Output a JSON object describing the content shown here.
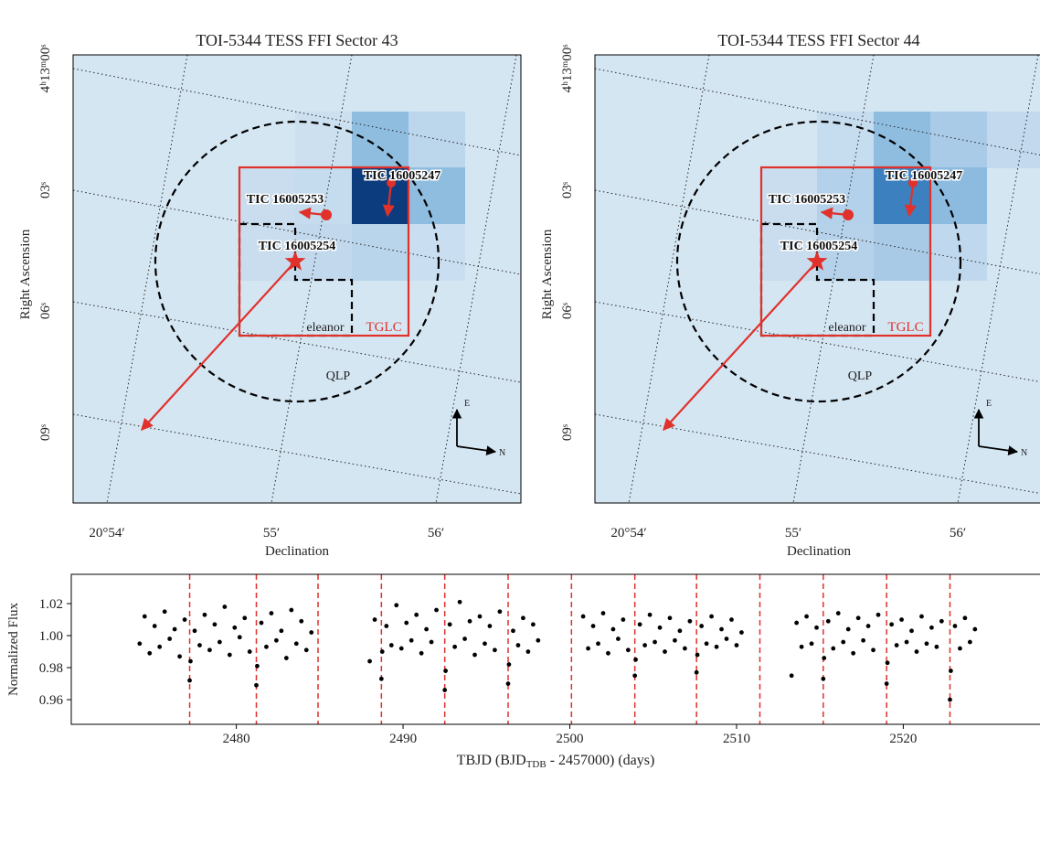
{
  "panels": [
    {
      "title": "TOI-5344 TESS FFI Sector 43",
      "xticks": [
        "20°54′",
        "55′",
        "56′"
      ],
      "yticks": [
        "4ʰ13ᵐ00ˢ",
        "03ˢ",
        "06ˢ",
        "09ˢ"
      ],
      "xlabel": "Declination",
      "ylabel": "Right Ascension",
      "labels": {
        "tic47": "TIC 16005247",
        "tic53": "TIC 16005253",
        "tic54": "TIC 16005254",
        "eleanor": "eleanor",
        "tglc": "TGLC",
        "qlp": "QLP",
        "east": "E",
        "north": "N"
      }
    },
    {
      "title": "TOI-5344 TESS FFI Sector 44",
      "xticks": [
        "20°54′",
        "55′",
        "56′"
      ],
      "yticks": [
        "4ʰ13ᵐ00ˢ",
        "03ˢ",
        "06ˢ",
        "09ˢ"
      ],
      "xlabel": "Declination",
      "ylabel": "Right Ascension",
      "labels": {
        "tic47": "TIC 16005247",
        "tic53": "TIC 16005253",
        "tic54": "TIC 16005254",
        "eleanor": "eleanor",
        "tglc": "TGLC",
        "qlp": "QLP",
        "east": "E",
        "north": "N"
      }
    }
  ],
  "chart_data": {
    "type": "scatter",
    "color": "#000000",
    "transit_color": "#e0312b",
    "ylabel": "Normalized Flux",
    "xlabel": [
      "TBJD (BJD",
      "TDB",
      " - 2457000) (days)"
    ],
    "xlim": [
      2470.1,
      2528.2
    ],
    "ylim": [
      0.9446,
      1.0383
    ],
    "xticks": [
      2480,
      2490,
      2500,
      2510,
      2520
    ],
    "yticks": [
      0.96,
      0.98,
      {
        "value": 1,
        "label": "1.00"
      },
      1.02
    ],
    "transits": [
      2477.2,
      2481.2,
      2484.9,
      2488.7,
      2492.5,
      2496.3,
      2500.1,
      2503.9,
      2507.6,
      2511.4,
      2515.2,
      2519.0,
      2522.8
    ],
    "x": [
      2474.2,
      2474.5,
      2474.8,
      2475.1,
      2475.4,
      2475.7,
      2476.0,
      2476.3,
      2476.6,
      2476.9,
      2477.2,
      2477.25,
      2477.5,
      2477.8,
      2478.1,
      2478.4,
      2478.7,
      2479.0,
      2479.3,
      2479.6,
      2479.9,
      2480.2,
      2480.5,
      2480.8,
      2481.2,
      2481.25,
      2481.5,
      2481.8,
      2482.1,
      2482.4,
      2482.7,
      2483.0,
      2483.3,
      2483.6,
      2483.9,
      2484.2,
      2484.5,
      2488.0,
      2488.3,
      2488.7,
      2488.75,
      2489.0,
      2489.3,
      2489.6,
      2489.9,
      2490.2,
      2490.5,
      2490.8,
      2491.1,
      2491.4,
      2491.7,
      2492.0,
      2492.5,
      2492.55,
      2492.8,
      2493.1,
      2493.4,
      2493.7,
      2494.0,
      2494.3,
      2494.6,
      2494.9,
      2495.2,
      2495.5,
      2495.8,
      2496.3,
      2496.35,
      2496.6,
      2496.9,
      2497.2,
      2497.5,
      2497.8,
      2498.1,
      2500.8,
      2501.1,
      2501.4,
      2501.7,
      2502.0,
      2502.3,
      2502.6,
      2502.9,
      2503.2,
      2503.5,
      2503.9,
      2503.95,
      2504.2,
      2504.5,
      2504.8,
      2505.1,
      2505.4,
      2505.7,
      2506.0,
      2506.3,
      2506.6,
      2506.9,
      2507.2,
      2507.6,
      2507.65,
      2507.9,
      2508.2,
      2508.5,
      2508.8,
      2509.1,
      2509.4,
      2509.7,
      2510.0,
      2510.3,
      2513.3,
      2513.6,
      2513.9,
      2514.2,
      2514.5,
      2514.8,
      2515.2,
      2515.25,
      2515.5,
      2515.8,
      2516.1,
      2516.4,
      2516.7,
      2517.0,
      2517.3,
      2517.6,
      2517.9,
      2518.2,
      2518.5,
      2519.0,
      2519.05,
      2519.3,
      2519.6,
      2519.9,
      2520.2,
      2520.5,
      2520.8,
      2521.1,
      2521.4,
      2521.7,
      2522.0,
      2522.3,
      2522.8,
      2522.85,
      2523.1,
      2523.4,
      2523.7,
      2524.0,
      2524.3
    ],
    "values": [
      0.995,
      1.012,
      0.989,
      1.006,
      0.993,
      1.015,
      0.998,
      1.004,
      0.987,
      1.01,
      0.972,
      0.984,
      1.003,
      0.994,
      1.013,
      0.991,
      1.007,
      0.996,
      1.018,
      0.988,
      1.005,
      0.999,
      1.011,
      0.99,
      0.969,
      0.981,
      1.008,
      0.993,
      1.014,
      0.997,
      1.003,
      0.986,
      1.016,
      0.995,
      1.009,
      0.991,
      1.002,
      0.984,
      1.01,
      0.973,
      0.99,
      1.006,
      0.994,
      1.019,
      0.992,
      1.008,
      0.997,
      1.013,
      0.989,
      1.004,
      0.996,
      1.016,
      0.966,
      0.978,
      1.007,
      0.993,
      1.021,
      0.998,
      1.009,
      0.988,
      1.012,
      0.995,
      1.006,
      0.991,
      1.015,
      0.97,
      0.982,
      1.003,
      0.994,
      1.011,
      0.99,
      1.007,
      0.997,
      1.012,
      0.992,
      1.006,
      0.995,
      1.014,
      0.989,
      1.004,
      0.998,
      1.01,
      0.991,
      0.975,
      0.985,
      1.007,
      0.994,
      1.013,
      0.996,
      1.005,
      0.99,
      1.011,
      0.997,
      1.003,
      0.992,
      1.009,
      0.977,
      0.988,
      1.006,
      0.995,
      1.012,
      0.993,
      1.004,
      0.998,
      1.01,
      0.994,
      1.002,
      0.975,
      1.008,
      0.993,
      1.012,
      0.995,
      1.005,
      0.973,
      0.986,
      1.009,
      0.992,
      1.014,
      0.996,
      1.004,
      0.989,
      1.011,
      0.997,
      1.006,
      0.991,
      1.013,
      0.97,
      0.983,
      1.007,
      0.994,
      1.01,
      0.996,
      1.003,
      0.99,
      1.012,
      0.995,
      1.005,
      0.993,
      1.009,
      0.96,
      0.978,
      1.006,
      0.992,
      1.011,
      0.996,
      1.004
    ]
  }
}
